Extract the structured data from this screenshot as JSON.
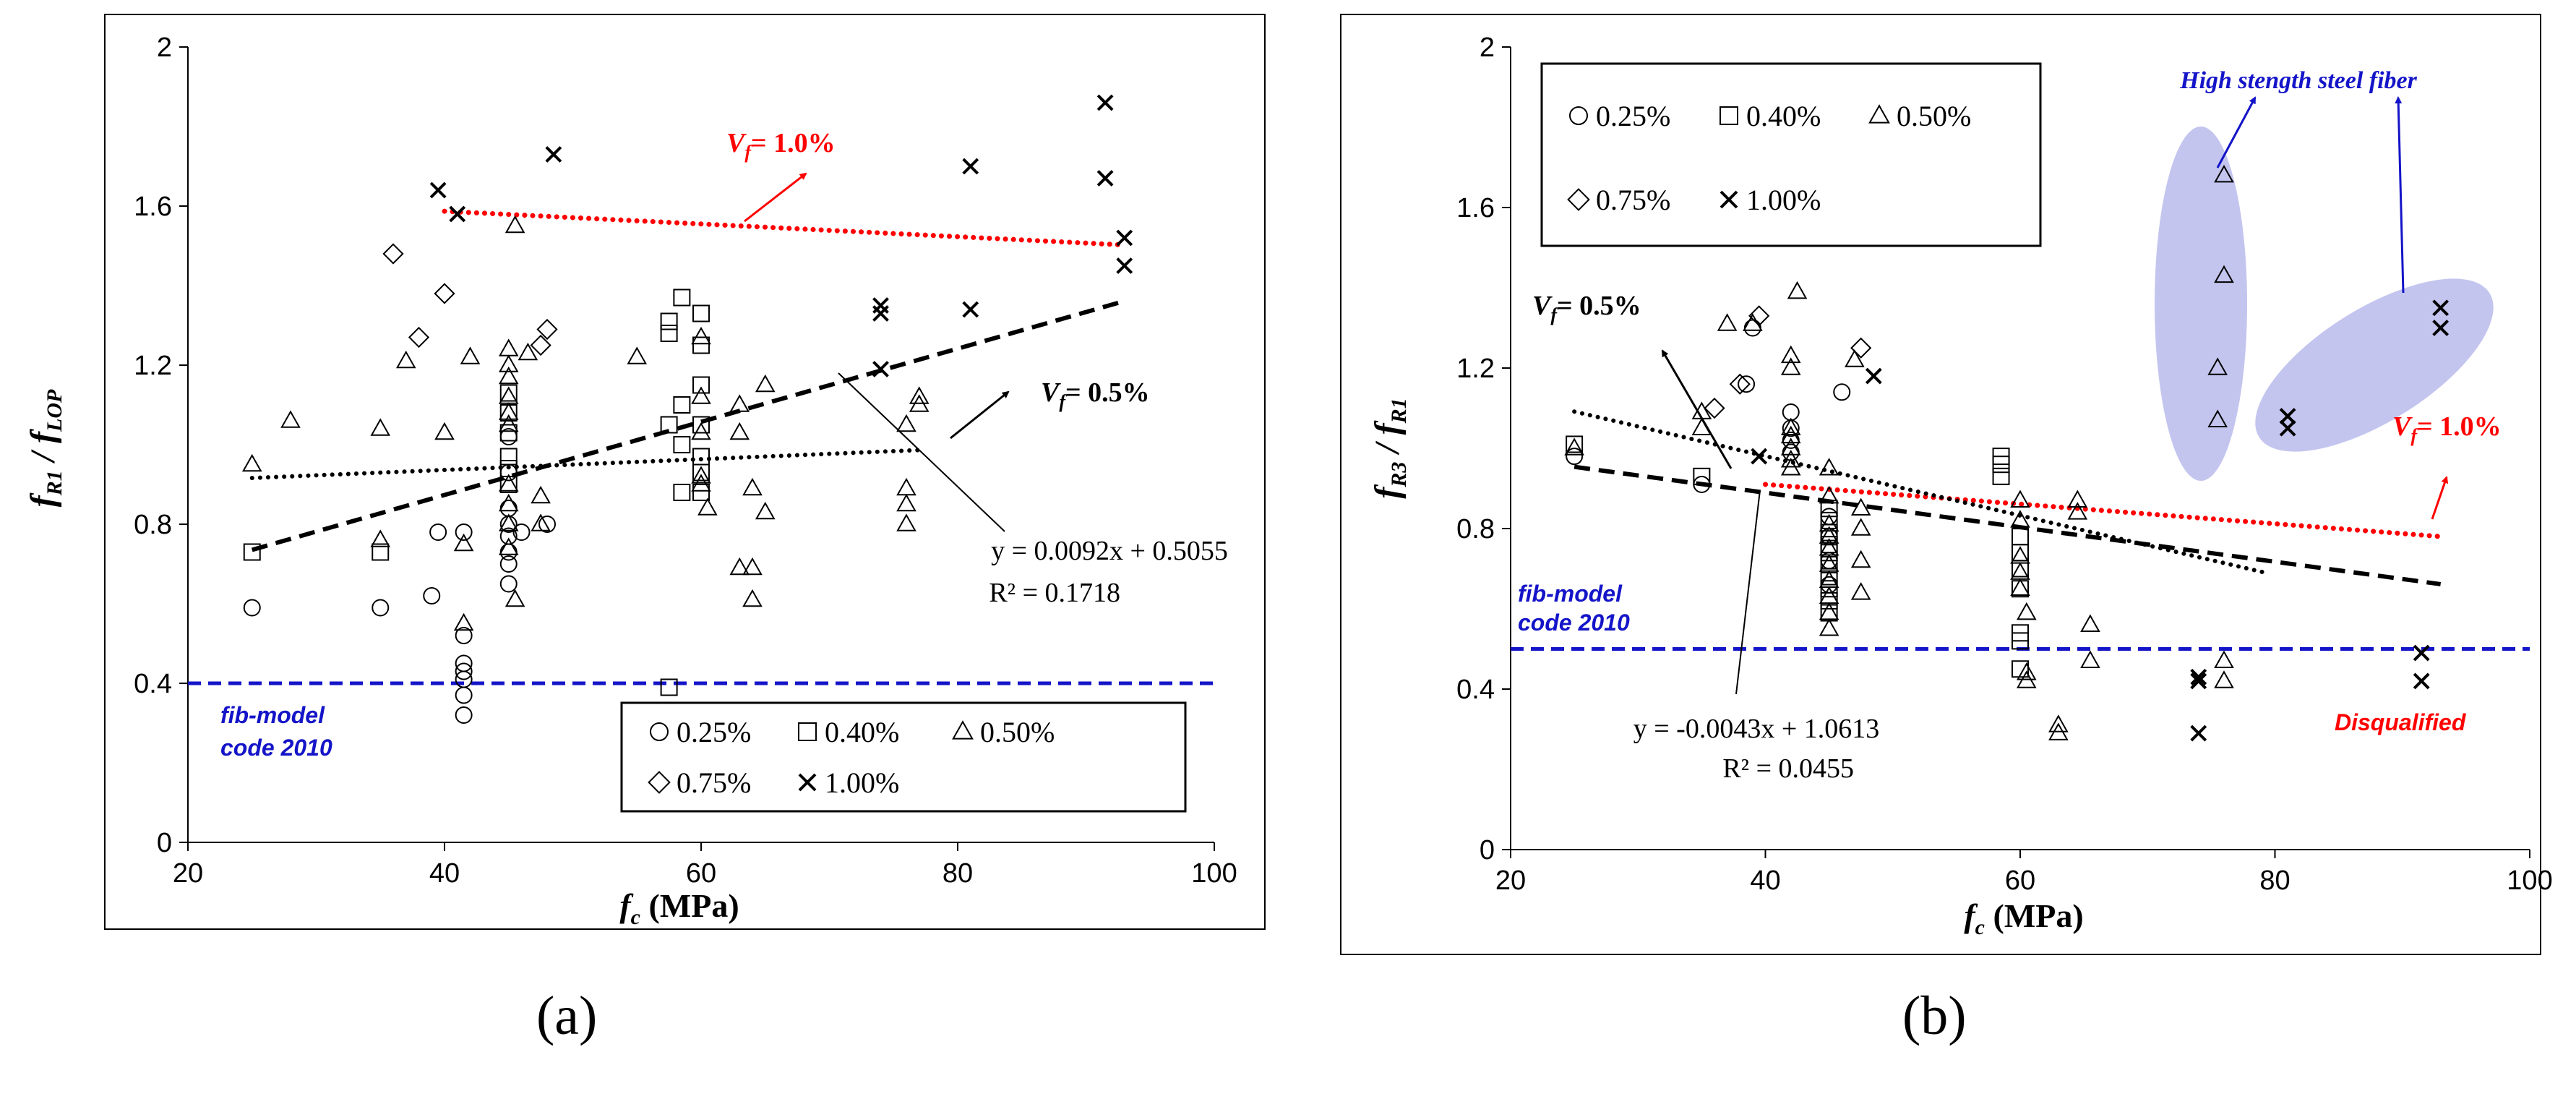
{
  "colors": {
    "black": "#000000",
    "red": "#ff0000",
    "blue": "#1414c8",
    "ellipse": "#c3c5ef"
  },
  "chart_data": [
    {
      "id": "a",
      "panel_label": "(a)",
      "type": "scatter",
      "xlabel": {
        "main": "f",
        "sub": "c",
        "rest": " (MPa)"
      },
      "ylabel": {
        "f1": "f",
        "s1": "R1",
        "mid": " / ",
        "f2": "f",
        "s2": "LOP"
      },
      "xlim": [
        20,
        100
      ],
      "ylim": [
        0,
        2
      ],
      "xticks": [
        20,
        40,
        60,
        80,
        100
      ],
      "yticks": [
        0,
        0.4,
        0.8,
        1.2,
        1.6,
        2
      ],
      "ytick_labels": [
        "0",
        "0.4",
        "0.8",
        "1.2",
        "1.6",
        "2"
      ],
      "legend": {
        "position": "bottom-right",
        "rows": [
          [
            {
              "marker": "circle",
              "label": "0.25%"
            },
            {
              "marker": "square",
              "label": "0.40%"
            },
            {
              "marker": "triangle",
              "label": "0.50%"
            }
          ],
          [
            {
              "marker": "diamond",
              "label": "0.75%"
            },
            {
              "marker": "cross",
              "label": "1.00%"
            }
          ]
        ]
      },
      "series": [
        {
          "name": "0.25%",
          "marker": "circle",
          "points": [
            [
              25,
              0.59
            ],
            [
              35,
              0.59
            ],
            [
              39,
              0.62
            ],
            [
              39.5,
              0.78
            ],
            [
              41.5,
              0.78
            ],
            [
              41.5,
              0.45
            ],
            [
              41.5,
              0.43
            ],
            [
              41.5,
              0.41
            ],
            [
              41.5,
              0.37
            ],
            [
              41.5,
              0.32
            ],
            [
              41.5,
              0.52
            ],
            [
              45,
              0.93
            ],
            [
              45,
              0.84
            ],
            [
              45,
              0.8
            ],
            [
              45,
              0.77
            ],
            [
              45,
              0.73
            ],
            [
              45,
              0.7
            ],
            [
              45,
              0.65
            ],
            [
              45,
              1.02
            ],
            [
              46,
              0.78
            ],
            [
              48,
              0.8
            ]
          ]
        },
        {
          "name": "0.40%",
          "marker": "square",
          "points": [
            [
              25,
              0.73
            ],
            [
              35,
              0.73
            ],
            [
              45,
              1.13
            ],
            [
              45,
              1.08
            ],
            [
              45,
              1.03
            ],
            [
              45,
              0.97
            ],
            [
              45,
              0.94
            ],
            [
              45,
              0.9
            ],
            [
              57.5,
              1.31
            ],
            [
              57.5,
              1.28
            ],
            [
              57.5,
              1.05
            ],
            [
              57.5,
              0.39
            ],
            [
              58.5,
              1.37
            ],
            [
              58.5,
              0.88
            ],
            [
              58.5,
              1.1
            ],
            [
              58.5,
              1.0
            ],
            [
              60,
              1.33
            ],
            [
              60,
              1.25
            ],
            [
              60,
              1.15
            ],
            [
              60,
              1.05
            ],
            [
              60,
              0.97
            ],
            [
              60,
              0.93
            ],
            [
              60,
              0.88
            ]
          ]
        },
        {
          "name": "0.50%",
          "marker": "triangle",
          "points": [
            [
              25,
              0.95
            ],
            [
              28,
              1.06
            ],
            [
              35,
              1.04
            ],
            [
              35,
              0.76
            ],
            [
              37,
              1.21
            ],
            [
              40,
              1.03
            ],
            [
              41.5,
              0.75
            ],
            [
              41.5,
              0.55
            ],
            [
              42,
              1.22
            ],
            [
              45,
              1.24
            ],
            [
              45,
              1.2
            ],
            [
              45,
              1.17
            ],
            [
              45,
              1.12
            ],
            [
              45,
              1.08
            ],
            [
              45,
              1.05
            ],
            [
              45,
              0.9
            ],
            [
              45,
              0.85
            ],
            [
              45,
              0.8
            ],
            [
              45,
              0.74
            ],
            [
              45.5,
              1.55
            ],
            [
              45.5,
              0.61
            ],
            [
              46.5,
              1.23
            ],
            [
              47.5,
              0.87
            ],
            [
              47.5,
              0.8
            ],
            [
              55,
              1.22
            ],
            [
              60,
              1.27
            ],
            [
              60,
              1.12
            ],
            [
              60,
              1.03
            ],
            [
              60,
              0.92
            ],
            [
              60,
              0.9
            ],
            [
              60.5,
              0.84
            ],
            [
              63,
              1.1
            ],
            [
              63,
              1.03
            ],
            [
              63,
              0.69
            ],
            [
              64,
              0.89
            ],
            [
              64,
              0.69
            ],
            [
              64,
              0.61
            ],
            [
              65,
              1.15
            ],
            [
              65,
              0.83
            ],
            [
              76,
              1.05
            ],
            [
              76,
              0.89
            ],
            [
              76,
              0.85
            ],
            [
              76,
              0.8
            ],
            [
              77,
              1.12
            ],
            [
              77,
              1.1
            ]
          ]
        },
        {
          "name": "0.75%",
          "marker": "diamond",
          "points": [
            [
              36,
              1.48
            ],
            [
              38,
              1.27
            ],
            [
              40,
              1.38
            ],
            [
              47.5,
              1.25
            ],
            [
              48,
              1.29
            ]
          ]
        },
        {
          "name": "1.00%",
          "marker": "cross",
          "points": [
            [
              39.5,
              1.64
            ],
            [
              41,
              1.58
            ],
            [
              48.5,
              1.73
            ],
            [
              74,
              1.35
            ],
            [
              74,
              1.33
            ],
            [
              74,
              1.19
            ],
            [
              81,
              1.7
            ],
            [
              81,
              1.34
            ],
            [
              91.5,
              1.86
            ],
            [
              91.5,
              1.67
            ],
            [
              93,
              1.52
            ],
            [
              93,
              1.45
            ]
          ]
        }
      ],
      "trendlines": [
        {
          "name": "Vf=1.0%",
          "style": "red-dotted",
          "x0": 40,
          "x1": 93,
          "slope": -0.0016,
          "intercept": 1.651
        },
        {
          "name": "Vf=0.5%",
          "style": "black-dotted",
          "x0": 25,
          "x1": 77,
          "slope": 0.00135,
          "intercept": 0.8825
        },
        {
          "name": "all",
          "style": "black-dashed",
          "x0": 25,
          "x1": 93,
          "slope": 0.0092,
          "intercept": 0.5055
        }
      ],
      "reference_line": {
        "y": 0.4,
        "label_line1": "fib-model",
        "label_line2": "code 2010"
      },
      "annotations": {
        "vf10": {
          "main": "V",
          "sub": "f",
          "rest": "= 1.0%"
        },
        "vf05": {
          "main": "V",
          "sub": "f",
          "rest": "= 0.5%"
        },
        "equation": "y = 0.0092x + 0.5055",
        "r2": "R² = 0.1718"
      }
    },
    {
      "id": "b",
      "panel_label": "(b)",
      "type": "scatter",
      "xlabel": {
        "main": "f",
        "sub": "c",
        "rest": " (MPa)"
      },
      "ylabel": {
        "f1": "f",
        "s1": "R3",
        "mid": " / ",
        "f2": "f",
        "s2": "R1"
      },
      "xlim": [
        20,
        100
      ],
      "ylim": [
        0,
        2
      ],
      "xticks": [
        20,
        40,
        60,
        80,
        100
      ],
      "yticks": [
        0,
        0.4,
        0.8,
        1.2,
        1.6,
        2
      ],
      "ytick_labels": [
        "0",
        "0.4",
        "0.8",
        "1.2",
        "1.6",
        "2"
      ],
      "legend": {
        "position": "top-left",
        "rows": [
          [
            {
              "marker": "circle",
              "label": "0.25%"
            },
            {
              "marker": "square",
              "label": "0.40%"
            },
            {
              "marker": "triangle",
              "label": "0.50%"
            }
          ],
          [
            {
              "marker": "diamond",
              "label": "0.75%"
            },
            {
              "marker": "cross",
              "label": "1.00%"
            }
          ]
        ]
      },
      "series": [
        {
          "name": "0.25%",
          "marker": "circle",
          "points": [
            [
              25,
              0.98
            ],
            [
              35,
              0.91
            ],
            [
              38.5,
              1.16
            ],
            [
              39,
              1.3
            ],
            [
              42,
              1.09
            ],
            [
              42,
              1.05
            ],
            [
              42,
              1.02
            ],
            [
              42,
              0.99
            ],
            [
              45,
              0.83
            ],
            [
              45,
              0.78
            ],
            [
              45,
              0.72
            ],
            [
              45,
              0.66
            ],
            [
              46,
              1.14
            ]
          ]
        },
        {
          "name": "0.40%",
          "marker": "square",
          "points": [
            [
              25,
              1.01
            ],
            [
              35,
              0.93
            ],
            [
              45,
              0.85
            ],
            [
              45,
              0.82
            ],
            [
              45,
              0.79
            ],
            [
              45,
              0.76
            ],
            [
              45,
              0.74
            ],
            [
              45,
              0.71
            ],
            [
              45,
              0.68
            ],
            [
              45,
              0.65
            ],
            [
              45,
              0.62
            ],
            [
              45,
              0.59
            ],
            [
              58.5,
              0.98
            ],
            [
              58.5,
              0.96
            ],
            [
              58.5,
              0.93
            ],
            [
              60,
              0.78
            ],
            [
              60,
              0.74
            ],
            [
              60,
              0.7
            ],
            [
              60,
              0.65
            ],
            [
              60,
              0.54
            ],
            [
              60,
              0.52
            ],
            [
              60,
              0.45
            ]
          ]
        },
        {
          "name": "0.50%",
          "marker": "triangle",
          "points": [
            [
              25,
              1.0
            ],
            [
              35,
              1.09
            ],
            [
              35,
              1.05
            ],
            [
              37,
              1.31
            ],
            [
              39,
              1.31
            ],
            [
              42,
              1.23
            ],
            [
              42,
              1.2
            ],
            [
              42,
              1.05
            ],
            [
              42,
              1.03
            ],
            [
              42,
              1.0
            ],
            [
              42,
              0.97
            ],
            [
              42,
              0.95
            ],
            [
              42.5,
              1.39
            ],
            [
              45,
              0.95
            ],
            [
              45,
              0.88
            ],
            [
              45,
              0.81
            ],
            [
              45,
              0.78
            ],
            [
              45,
              0.75
            ],
            [
              45,
              0.71
            ],
            [
              45,
              0.67
            ],
            [
              45,
              0.63
            ],
            [
              45,
              0.59
            ],
            [
              45,
              0.55
            ],
            [
              47,
              1.22
            ],
            [
              47.5,
              0.85
            ],
            [
              47.5,
              0.8
            ],
            [
              47.5,
              0.72
            ],
            [
              47.5,
              0.64
            ],
            [
              60,
              0.87
            ],
            [
              60,
              0.82
            ],
            [
              60,
              0.73
            ],
            [
              60,
              0.69
            ],
            [
              60,
              0.65
            ],
            [
              60.5,
              0.59
            ],
            [
              60.5,
              0.44
            ],
            [
              60.5,
              0.42
            ],
            [
              63,
              0.31
            ],
            [
              63,
              0.29
            ],
            [
              64.5,
              0.87
            ],
            [
              64.5,
              0.84
            ],
            [
              65.5,
              0.56
            ],
            [
              65.5,
              0.47
            ],
            [
              76,
              1.68
            ],
            [
              76,
              1.43
            ],
            [
              75.5,
              1.2
            ],
            [
              75.5,
              1.07
            ],
            [
              76,
              0.47
            ],
            [
              76,
              0.42
            ]
          ]
        },
        {
          "name": "0.75%",
          "marker": "diamond",
          "points": [
            [
              36,
              1.1
            ],
            [
              38,
              1.16
            ],
            [
              39.5,
              1.33
            ],
            [
              47.5,
              1.25
            ]
          ]
        },
        {
          "name": "1.00%",
          "marker": "cross",
          "points": [
            [
              39.5,
              0.98
            ],
            [
              48.5,
              1.18
            ],
            [
              74,
              0.43
            ],
            [
              74,
              0.42
            ],
            [
              74,
              0.29
            ],
            [
              81,
              1.08
            ],
            [
              81,
              1.05
            ],
            [
              91.5,
              0.49
            ],
            [
              91.5,
              0.42
            ],
            [
              93,
              1.35
            ],
            [
              93,
              1.3
            ]
          ]
        }
      ],
      "trendlines": [
        {
          "name": "Vf=1.0%",
          "style": "red-dotted",
          "x0": 40,
          "x1": 93,
          "slope": -0.00245,
          "intercept": 1.008
        },
        {
          "name": "Vf=0.5%",
          "style": "black-dotted",
          "x0": 25,
          "x1": 79,
          "slope": -0.0074,
          "intercept": 1.2765
        },
        {
          "name": "all",
          "style": "black-dashed",
          "x0": 25,
          "x1": 93,
          "slope": -0.0043,
          "intercept": 1.0613
        }
      ],
      "reference_line": {
        "y": 0.5,
        "label_line1": "fib-model",
        "label_line2": "code 2010"
      },
      "annotations": {
        "vf05": {
          "main": "V",
          "sub": "f",
          "rest": "= 0.5%"
        },
        "vf10": {
          "main": "V",
          "sub": "f",
          "rest": "= 1.0%"
        },
        "hssf": "High stength steel fiber",
        "disqualified": "Disqualified",
        "equation": "y = -0.0043x + 1.0613",
        "r2": "R² = 0.0455"
      }
    }
  ]
}
